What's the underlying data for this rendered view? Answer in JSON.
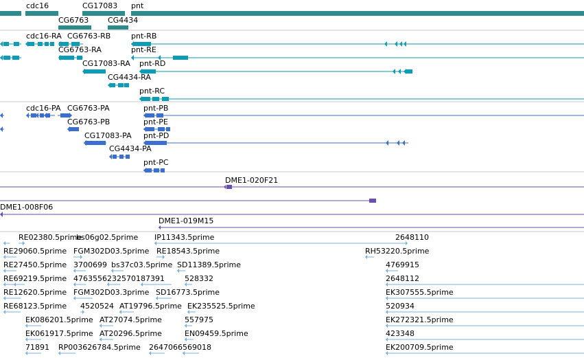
{
  "colors": {
    "gene": "#2e8b8b",
    "transcript": "#0e9bb5",
    "protein": "#3a6fd0",
    "clone": "#6a4fb0",
    "est": "#7ab0d8",
    "separator": "#c8c8c8"
  },
  "gene_labels": [
    "cdc16",
    "CG17083",
    "pnt",
    "CG6763",
    "CG4434"
  ],
  "transcript_labels": [
    "cdc16-RA",
    "CG6763-RB",
    "pnt-RB",
    "CG6763-RA",
    "pnt-RE",
    "CG17083-RA",
    "pnt-RD",
    "CG4434-RA",
    "pnt-RC"
  ],
  "protein_labels": [
    "cdc16-PA",
    "CG6763-PA",
    "pnt-PB",
    "CG6763-PB",
    "pnt-PE",
    "CG17083-PA",
    "pnt-PD",
    "CG4434-PA",
    "pnt-PC"
  ],
  "clone_labels": [
    "DME1-020F21",
    "DME1-008F06",
    "DME1-019M15"
  ],
  "est_labels": [
    "RE02380.5prime",
    "bs06g02.5prime",
    "IP11343.5prime",
    "2648110",
    "RE29060.5prime",
    "FGM302D03.5prime",
    "RE18543.5prime",
    "RH53220.5prime",
    "RE27450.5prime",
    "3700699",
    "bs37c03.5prime",
    "SD11389.5prime",
    "4769915",
    "RE69219.5prime",
    "4763556",
    "2325701",
    "87391",
    "528332",
    "2648112",
    "RE12620.5prime",
    "FGM302D03.3prime",
    "SD16773.5prime",
    "EK307555.5prime",
    "RE68123.5prime",
    "4520524",
    "AT19796.5prime",
    "EK235525.5prime",
    "520934",
    "EK086201.5prime",
    "AT27074.5prime",
    "557975",
    "EK272321.5prime",
    "EK061917.5prime",
    "AT20296.5prime",
    "EN09459.5prime",
    "423348",
    "71891",
    "RP003626784.5prime",
    "2647066",
    "569018",
    "EK200709.5prime"
  ]
}
